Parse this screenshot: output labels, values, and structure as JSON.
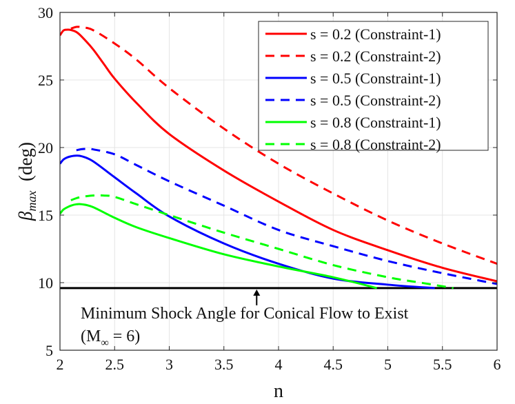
{
  "chart_data": {
    "type": "line",
    "title": "",
    "xlabel": "n",
    "ylabel": {
      "symbol": "β",
      "subscript": "max",
      "unit": "(deg)"
    },
    "xlim": [
      2,
      6
    ],
    "ylim": [
      5,
      30
    ],
    "xticks": [
      2,
      2.5,
      3,
      3.5,
      4,
      4.5,
      5,
      5.5,
      6
    ],
    "xtick_labels": [
      "2",
      "2.5",
      "3",
      "3.5",
      "4",
      "4.5",
      "5",
      "5.5",
      "6"
    ],
    "yticks": [
      5,
      10,
      15,
      20,
      25,
      30
    ],
    "ytick_labels": [
      "5",
      "10",
      "15",
      "20",
      "25",
      "30"
    ],
    "grid": true,
    "legend_position": "top-right",
    "series": [
      {
        "name": "s = 0.2 (Constraint-1)",
        "color": "#ff0000",
        "style": "solid",
        "x": [
          2.0,
          2.03,
          2.06,
          2.1,
          2.15,
          2.2,
          2.3,
          2.4,
          2.5,
          2.7,
          3.0,
          3.5,
          4.0,
          4.5,
          5.0,
          5.5,
          6.0
        ],
        "y": [
          28.3,
          28.65,
          28.72,
          28.7,
          28.55,
          28.2,
          27.3,
          26.2,
          25.1,
          23.3,
          21.0,
          18.3,
          16.0,
          13.9,
          12.4,
          11.1,
          10.1
        ]
      },
      {
        "name": "s = 0.2 (Constraint-2)",
        "color": "#ff0000",
        "style": "dashed",
        "x": [
          2.1,
          2.15,
          2.2,
          2.3,
          2.5,
          2.7,
          3.0,
          3.5,
          4.0,
          4.5,
          5.0,
          5.5,
          6.0
        ],
        "y": [
          28.8,
          28.93,
          28.9,
          28.7,
          27.7,
          26.5,
          24.4,
          21.4,
          18.8,
          16.6,
          14.6,
          12.9,
          11.4
        ]
      },
      {
        "name": "s = 0.5 (Constraint-1)",
        "color": "#0000ff",
        "style": "solid",
        "x": [
          2.0,
          2.03,
          2.06,
          2.1,
          2.15,
          2.2,
          2.3,
          2.5,
          2.7,
          3.0,
          3.5,
          4.0,
          4.5,
          5.0,
          5.43
        ],
        "y": [
          18.8,
          19.1,
          19.25,
          19.35,
          19.4,
          19.35,
          19.0,
          17.8,
          16.6,
          14.9,
          12.9,
          11.4,
          10.3,
          9.85,
          9.6
        ]
      },
      {
        "name": "s = 0.5 (Constraint-2)",
        "color": "#0000ff",
        "style": "dashed",
        "x": [
          2.15,
          2.2,
          2.25,
          2.3,
          2.5,
          2.7,
          3.0,
          3.5,
          4.0,
          4.5,
          5.0,
          5.5,
          6.0
        ],
        "y": [
          19.8,
          19.88,
          19.9,
          19.87,
          19.5,
          18.7,
          17.5,
          15.7,
          13.9,
          12.7,
          11.6,
          10.7,
          9.9
        ]
      },
      {
        "name": "s = 0.8 (Constraint-1)",
        "color": "#00ff00",
        "style": "solid",
        "x": [
          2.0,
          2.03,
          2.06,
          2.1,
          2.15,
          2.2,
          2.3,
          2.5,
          2.7,
          3.0,
          3.5,
          4.0,
          4.5,
          4.9
        ],
        "y": [
          15.1,
          15.4,
          15.55,
          15.7,
          15.8,
          15.8,
          15.6,
          14.8,
          14.1,
          13.3,
          12.1,
          11.2,
          10.4,
          9.6
        ]
      },
      {
        "name": "s = 0.8 (Constraint-2)",
        "color": "#00ff00",
        "style": "dashed",
        "x": [
          2.1,
          2.15,
          2.2,
          2.3,
          2.4,
          2.5,
          2.7,
          3.0,
          3.5,
          4.0,
          4.5,
          5.0,
          5.3,
          5.6
        ],
        "y": [
          16.1,
          16.25,
          16.35,
          16.45,
          16.45,
          16.35,
          15.8,
          15.0,
          13.7,
          12.5,
          11.3,
          10.4,
          10.0,
          9.6
        ]
      }
    ],
    "reference_line": {
      "y": 9.6,
      "color": "#000000"
    },
    "annotation": {
      "arrow_x": 3.8,
      "line1": "Minimum Shock Angle for Conical Flow to Exist",
      "line2_prefix": "(M",
      "line2_sub": "∞",
      "line2_suffix": " = 6)"
    }
  }
}
